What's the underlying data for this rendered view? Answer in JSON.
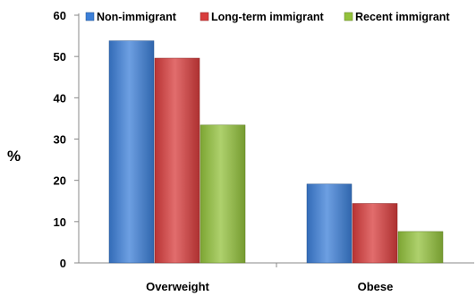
{
  "chart_data": {
    "type": "bar",
    "ylabel": "%",
    "ylim": [
      0,
      60
    ],
    "yticks": [
      0,
      10,
      20,
      30,
      40,
      50,
      60
    ],
    "categories": [
      "Overweight",
      "Obese"
    ],
    "series": [
      {
        "name": "Non-immigrant",
        "values": [
          53.8,
          19.1
        ],
        "color": "#3c7fd8"
      },
      {
        "name": "Long-term immigrant",
        "values": [
          49.6,
          14.4
        ],
        "color": "#d83c3c"
      },
      {
        "name": "Recent immigrant",
        "values": [
          33.4,
          7.6
        ],
        "color": "#93c23c"
      }
    ],
    "legend_position": "top",
    "grid": false
  }
}
